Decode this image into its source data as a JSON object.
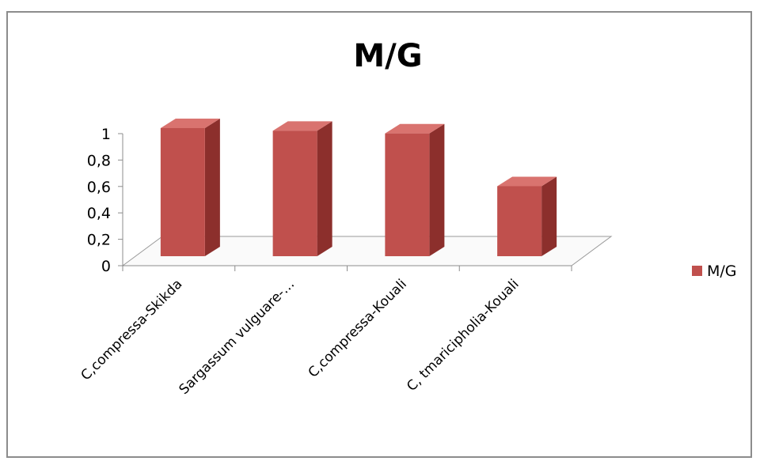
{
  "chart_data": {
    "type": "bar",
    "title": "M/G",
    "categories": [
      "C,compressa-Skikda",
      "Sargassum vulguare-…",
      "C,compressa-Kouali",
      "C, tmaricipholia-Kouali"
    ],
    "series": [
      {
        "name": "M/G",
        "values": [
          0.97,
          0.95,
          0.93,
          0.53
        ]
      }
    ],
    "ylim": [
      0,
      1
    ],
    "yticks": [
      "0",
      "0,2",
      "0,4",
      "0,6",
      "0,8",
      "1"
    ],
    "grid": false,
    "legend": "right",
    "colors": {
      "bar_front": "#c0504d",
      "bar_side": "#8c2f2c",
      "bar_top": "#d9736f"
    }
  }
}
